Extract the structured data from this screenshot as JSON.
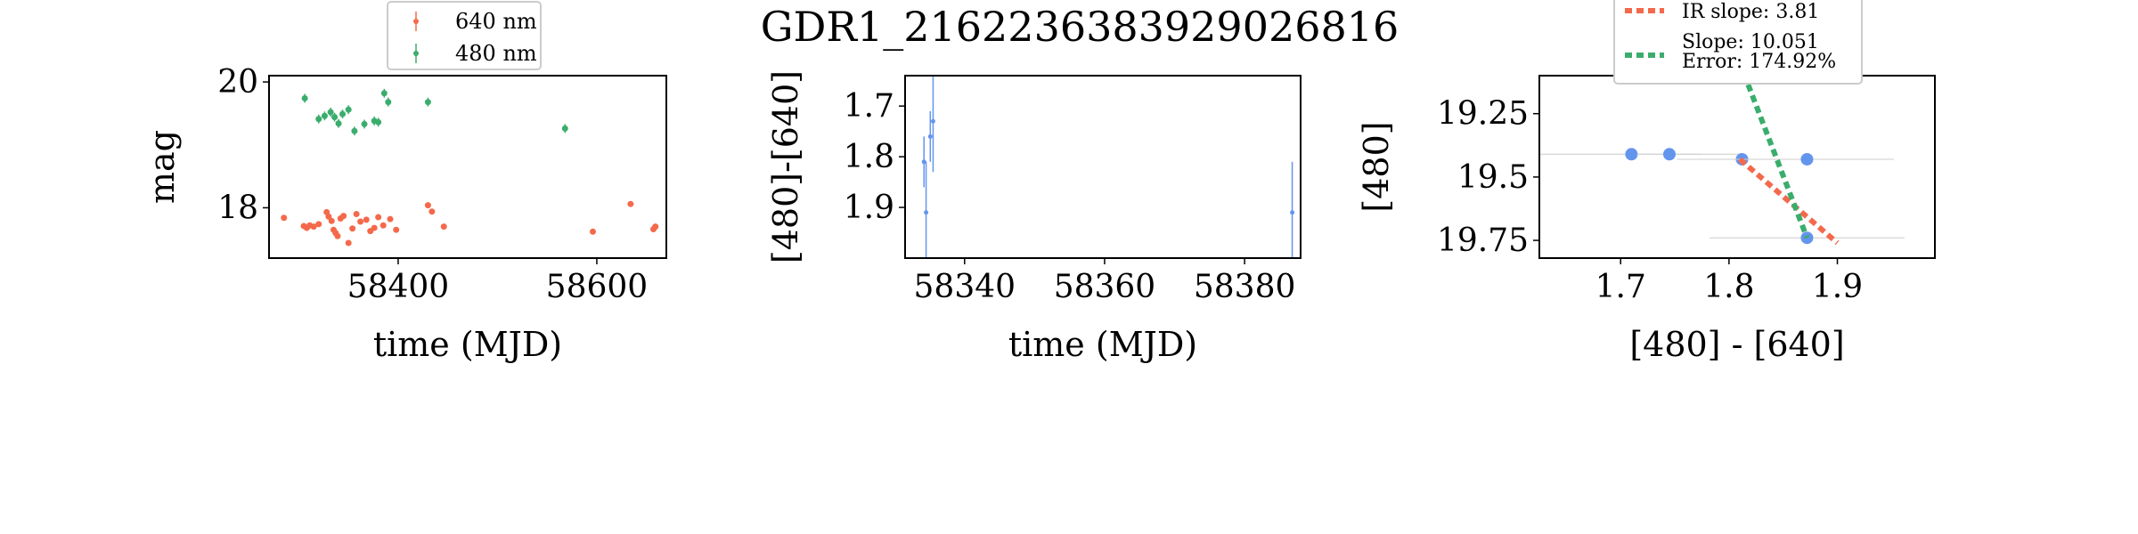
{
  "figure": {
    "title": "GDR1_2162236383929026816"
  },
  "chart_data": [
    {
      "type": "scatter",
      "xlabel": "time (MJD)",
      "ylabel": "mag",
      "xlim": [
        58270,
        58670
      ],
      "ylim": [
        20.1,
        17.2
      ],
      "y_inverted": true,
      "xticks": [
        58400,
        58600
      ],
      "yticks": [
        18,
        20
      ],
      "legend": {
        "placement": "top-center",
        "entries": [
          "640 nm",
          "480 nm"
        ]
      },
      "series": [
        {
          "name": "640 nm",
          "color": "#f4694b",
          "points": [
            [
              58285,
              17.84
            ],
            [
              58305,
              17.71
            ],
            [
              58308,
              17.68
            ],
            [
              58311,
              17.72
            ],
            [
              58315,
              17.7
            ],
            [
              58320,
              17.74
            ],
            [
              58328,
              17.93
            ],
            [
              58330,
              17.86
            ],
            [
              58333,
              17.79
            ],
            [
              58335,
              17.65
            ],
            [
              58337,
              17.6
            ],
            [
              58339,
              17.55
            ],
            [
              58342,
              17.83
            ],
            [
              58345,
              17.87
            ],
            [
              58350,
              17.44
            ],
            [
              58354,
              17.67
            ],
            [
              58358,
              17.9
            ],
            [
              58362,
              17.78
            ],
            [
              58368,
              17.81
            ],
            [
              58372,
              17.63
            ],
            [
              58376,
              17.68
            ],
            [
              58380,
              17.85
            ],
            [
              58385,
              17.72
            ],
            [
              58392,
              17.82
            ],
            [
              58398,
              17.65
            ],
            [
              58430,
              18.04
            ],
            [
              58434,
              17.94
            ],
            [
              58446,
              17.7
            ],
            [
              58596,
              17.62
            ],
            [
              58634,
              18.06
            ],
            [
              58657,
              17.66
            ],
            [
              58659,
              17.7
            ]
          ],
          "yerr": 0.03
        },
        {
          "name": "480 nm",
          "color": "#3aad6d",
          "points": [
            [
              58306,
              19.74
            ],
            [
              58320,
              19.41
            ],
            [
              58326,
              19.46
            ],
            [
              58332,
              19.52
            ],
            [
              58336,
              19.44
            ],
            [
              58340,
              19.34
            ],
            [
              58344,
              19.49
            ],
            [
              58350,
              19.56
            ],
            [
              58356,
              19.22
            ],
            [
              58366,
              19.33
            ],
            [
              58376,
              19.38
            ],
            [
              58380,
              19.36
            ],
            [
              58386,
              19.82
            ],
            [
              58390,
              19.68
            ],
            [
              58430,
              19.68
            ],
            [
              58568,
              19.26
            ]
          ],
          "yerr": 0.07
        }
      ]
    },
    {
      "type": "scatter",
      "xlabel": "time (MJD)",
      "ylabel": "[480]-[640]",
      "xlim": [
        58331.5,
        58388
      ],
      "ylim": [
        1.64,
        2.0
      ],
      "y_inverted": true,
      "xticks": [
        58340,
        58360,
        58380
      ],
      "yticks": [
        1.7,
        1.8,
        1.9
      ],
      "series": [
        {
          "name": "",
          "color": "#6495ed",
          "points": [
            [
              58334.2,
              1.81
            ],
            [
              58334.5,
              1.91
            ],
            [
              58335.1,
              1.76
            ],
            [
              58335.5,
              1.73
            ],
            [
              58386.8,
              1.91
            ]
          ],
          "yerr": [
            0.05,
            0.1,
            0.05,
            0.1,
            0.1
          ]
        }
      ]
    },
    {
      "type": "scatter",
      "xlabel": "[480] - [640]",
      "ylabel": "[480]",
      "xlim": [
        1.625,
        1.99
      ],
      "ylim": [
        19.1,
        19.82
      ],
      "y_inverted": true,
      "xticks": [
        1.7,
        1.8,
        1.9
      ],
      "yticks": [
        19.25,
        19.5,
        19.75
      ],
      "legend": {
        "placement": "top-center",
        "entries": [
          "IR slope: 3.81",
          "Slope: 10.051\nError: 174.92%"
        ]
      },
      "series": [
        {
          "name": "",
          "color": "#6495ed",
          "points": [
            [
              1.71,
              19.41
            ],
            [
              1.745,
              19.41
            ],
            [
              1.812,
              19.43
            ],
            [
              1.872,
              19.43
            ],
            [
              1.872,
              19.74
            ]
          ],
          "xerr": [
            0.1,
            0.03,
            0.06,
            0.08,
            0.09
          ]
        }
      ],
      "lines": [
        {
          "name": "IR slope: 3.81",
          "style": "dotted",
          "color": "#f4694b",
          "points": [
            [
              1.81,
              19.43
            ],
            [
              1.9,
              19.76
            ]
          ]
        },
        {
          "name": "Slope: 10.051 Error: 174.92%",
          "style": "dotted",
          "color": "#3aad6d",
          "points": [
            [
              1.81,
              19.05
            ],
            [
              1.872,
              19.74
            ]
          ]
        }
      ]
    }
  ]
}
